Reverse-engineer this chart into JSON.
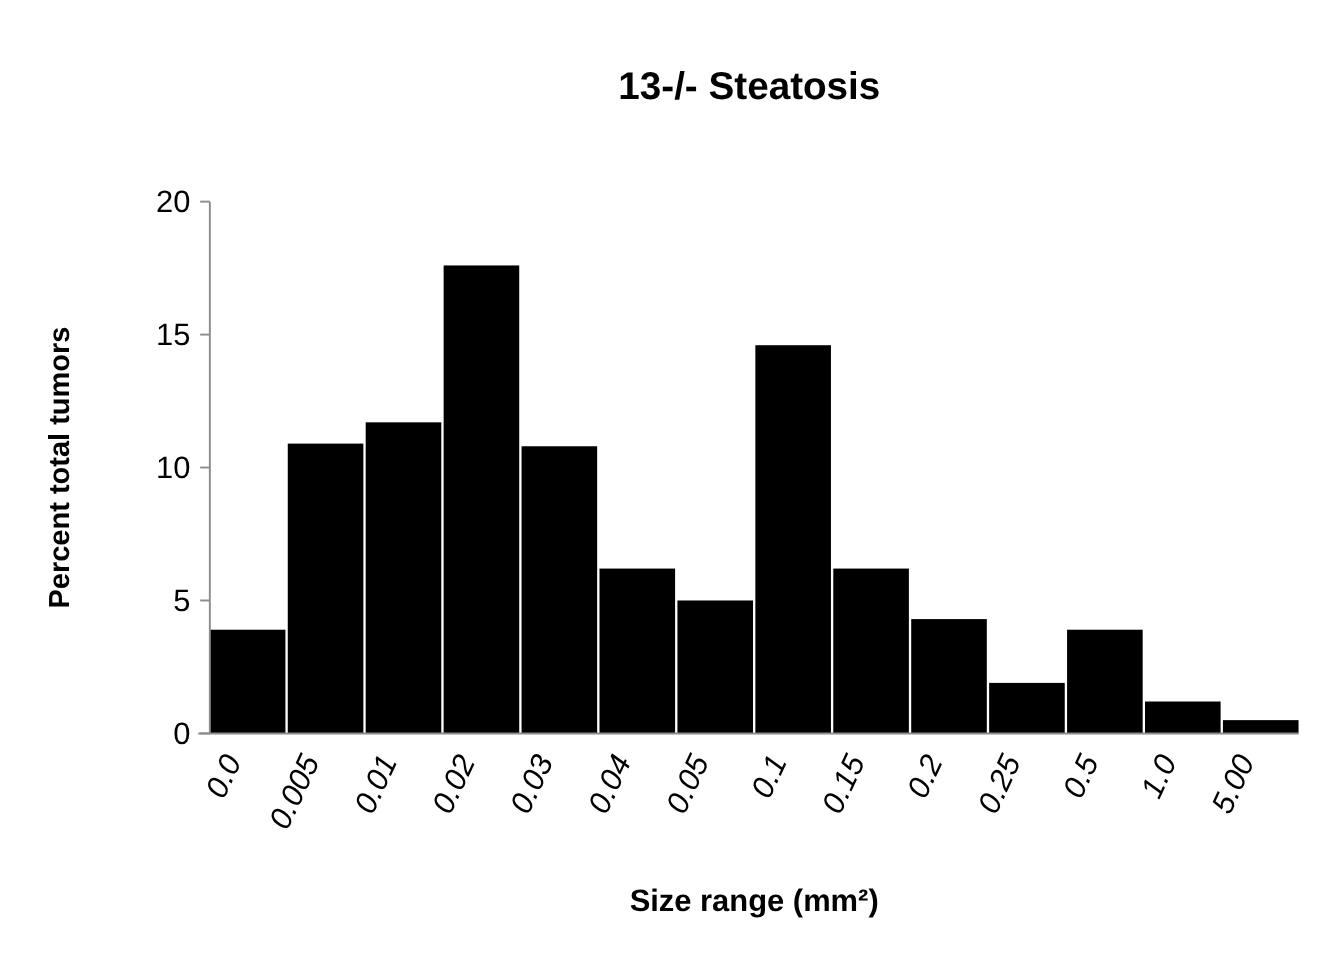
{
  "chart_data": {
    "type": "bar",
    "title": "13-/- Steatosis",
    "xlabel": "Size range (mm²)",
    "ylabel": "Percent total tumors",
    "categories": [
      "0.0",
      "0.005",
      "0.01",
      "0.02",
      "0.03",
      "0.04",
      "0.05",
      "0.1",
      "0.15",
      "0.2",
      "0.25",
      "0.5",
      "1.0",
      "5.00"
    ],
    "values": [
      3.9,
      10.9,
      11.7,
      17.6,
      10.8,
      6.2,
      5.0,
      14.6,
      6.2,
      4.3,
      1.9,
      3.9,
      1.2,
      0.5
    ],
    "color": "#000000",
    "ylim": [
      0,
      20
    ],
    "yticks": [
      0,
      5,
      10,
      15,
      20
    ],
    "grid": false
  }
}
